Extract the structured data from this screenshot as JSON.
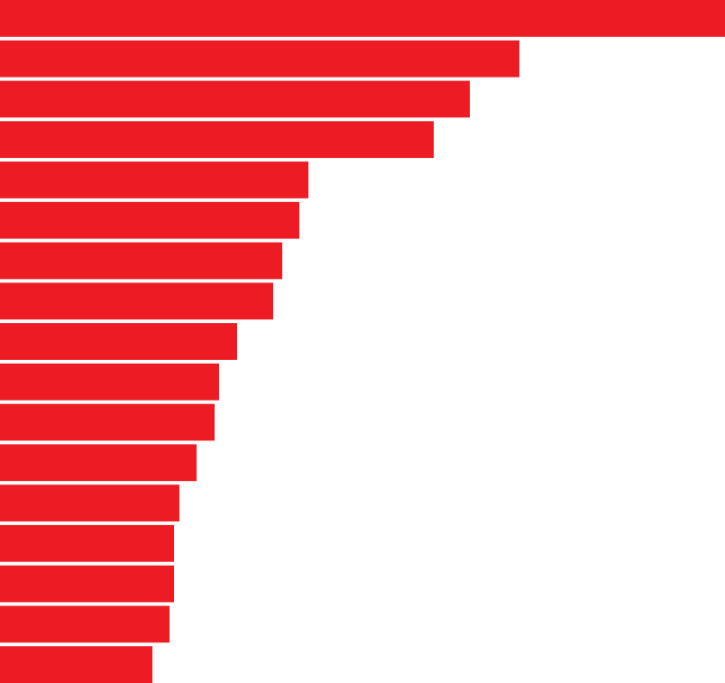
{
  "chart_data": {
    "type": "barh",
    "values": [
      804,
      576,
      521,
      481,
      342,
      332,
      313,
      303,
      263,
      243,
      238,
      218,
      199,
      193,
      193,
      188,
      169
    ],
    "color": "#ed1c24",
    "xlim": [
      0,
      804
    ]
  }
}
